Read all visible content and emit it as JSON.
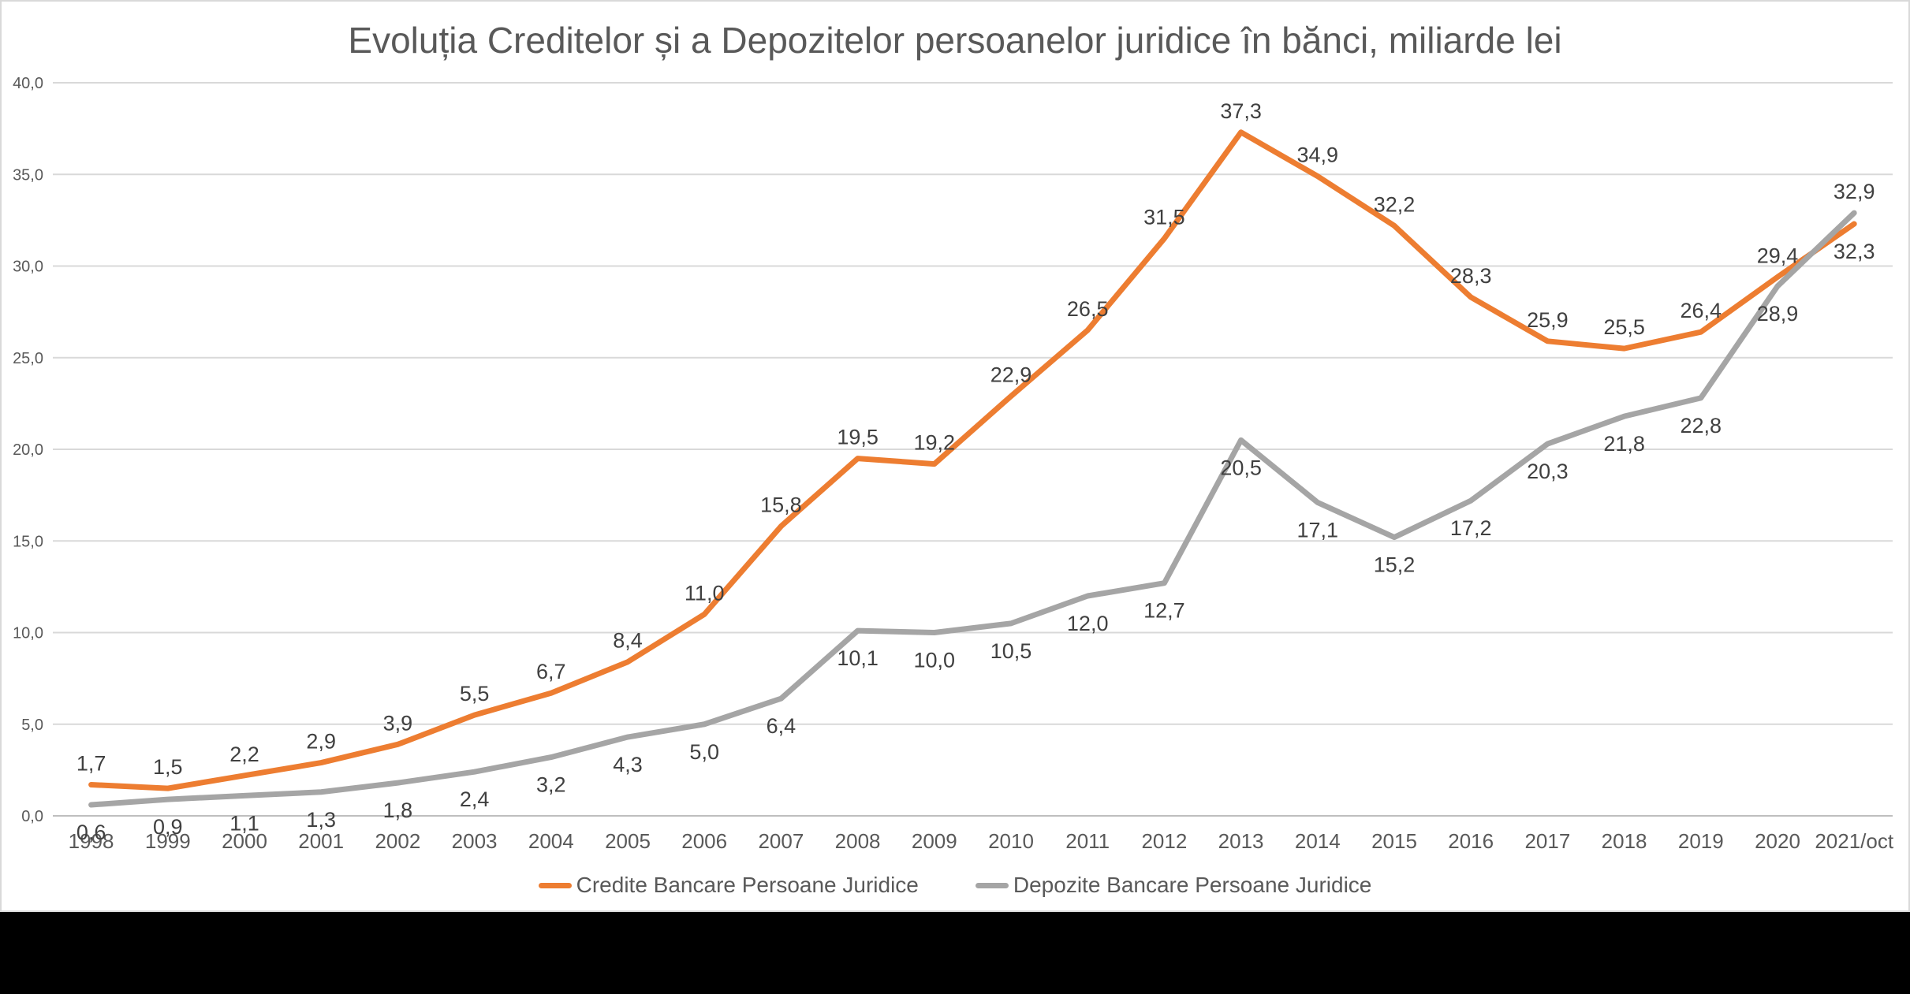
{
  "title": "Evoluția Creditelor și a Depozitelor persoanelor juridice în bănci, miliarde lei",
  "chart_data": {
    "type": "line",
    "categories": [
      "1998",
      "1999",
      "2000",
      "2001",
      "2002",
      "2003",
      "2004",
      "2005",
      "2006",
      "2007",
      "2008",
      "2009",
      "2010",
      "2011",
      "2012",
      "2013",
      "2014",
      "2015",
      "2016",
      "2017",
      "2018",
      "2019",
      "2020",
      "2021/oct"
    ],
    "series": [
      {
        "name": "Credite Bancare Persoane Juridice",
        "color": "#ED7D31",
        "values": [
          1.7,
          1.5,
          2.2,
          2.9,
          3.9,
          5.5,
          6.7,
          8.4,
          11.0,
          15.8,
          19.5,
          19.2,
          22.9,
          26.5,
          31.5,
          37.3,
          34.9,
          32.2,
          28.3,
          25.9,
          25.5,
          26.4,
          29.4,
          32.3
        ],
        "labels": [
          "1,7",
          "1,5",
          "2,2",
          "2,9",
          "3,9",
          "5,5",
          "6,7",
          "8,4",
          "11,0",
          "15,8",
          "19,5",
          "19,2",
          "22,9",
          "26,5",
          "31,5",
          "37,3",
          "34,9",
          "32,2",
          "28,3",
          "25,9",
          "25,5",
          "26,4",
          "29,4",
          "32,3"
        ],
        "label_position": "above",
        "label_position_overrides": {
          "23": "below"
        }
      },
      {
        "name": "Depozite Bancare Persoane Juridice",
        "color": "#A5A5A5",
        "values": [
          0.6,
          0.9,
          1.1,
          1.3,
          1.8,
          2.4,
          3.2,
          4.3,
          5.0,
          6.4,
          10.1,
          10.0,
          10.5,
          12.0,
          12.7,
          20.5,
          17.1,
          15.2,
          17.2,
          20.3,
          21.8,
          22.8,
          28.9,
          32.9
        ],
        "labels": [
          "0,6",
          "0,9",
          "1,1",
          "1,3",
          "1,8",
          "2,4",
          "3,2",
          "4,3",
          "5,0",
          "6,4",
          "10,1",
          "10,0",
          "10,5",
          "12,0",
          "12,7",
          "20,5",
          "17,1",
          "15,2",
          "17,2",
          "20,3",
          "21,8",
          "22,8",
          "28,9",
          "32,9"
        ],
        "label_position": "below",
        "label_position_overrides": {
          "23": "above"
        }
      }
    ],
    "y_axis": {
      "min": 0,
      "max": 40,
      "step": 5,
      "tick_labels": [
        "0,0",
        "5,0",
        "10,0",
        "15,0",
        "20,0",
        "25,0",
        "30,0",
        "35,0",
        "40,0"
      ]
    },
    "x_axis": {
      "tick_labels_visible": true
    },
    "grid": true,
    "legend_position": "bottom",
    "colors": {
      "gridline": "#D9D9D9",
      "axis_line": "#BFBFBF",
      "tick_label": "#595959",
      "data_label": "#404040",
      "title": "#595959"
    }
  }
}
